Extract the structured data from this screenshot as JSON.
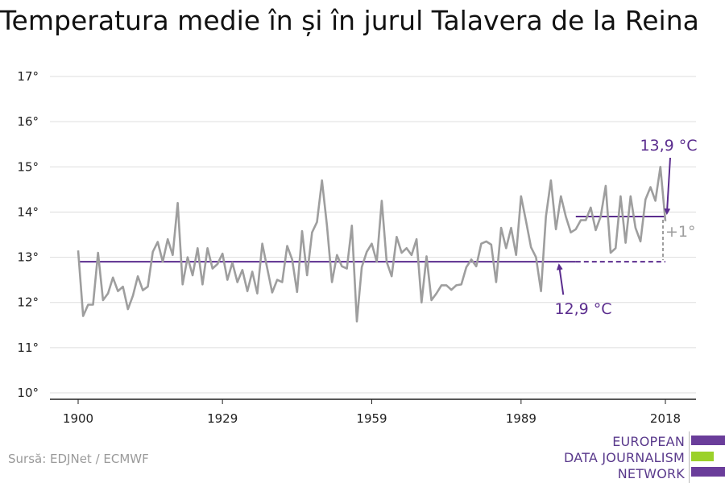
{
  "title": "Temperatura medie în și în jurul Talavera de la Reina",
  "source": "Sursă: EDJNet / ECMWF",
  "logo": {
    "lines": [
      "EUROPEAN",
      "DATA JOURNALISM",
      "NETWORK"
    ],
    "colors": {
      "purple": "#6a3d9a",
      "green": "#9bd12a"
    }
  },
  "colors": {
    "series": "#9e9e9e",
    "average": "#5b2d8e",
    "annotation": "#5b2d8e",
    "diff": "#9e9e9e",
    "grid": "#dddddd"
  },
  "chart_data": {
    "type": "line",
    "title": "Temperatura medie în și în jurul Talavera de la Reina",
    "xlabel": "",
    "ylabel": "",
    "xlim": [
      1900,
      2018
    ],
    "ylim": [
      10,
      17
    ],
    "x_ticks": [
      "1900",
      "1929",
      "1959",
      "1989",
      "2018"
    ],
    "y_ticks": [
      "10°",
      "11°",
      "12°",
      "13°",
      "14°",
      "15°",
      "16°",
      "17°"
    ],
    "grid": true,
    "series": [
      {
        "x": [
          1900,
          1901,
          1902,
          1903,
          1904,
          1905,
          1906,
          1907,
          1908,
          1909,
          1910,
          1911,
          1912,
          1913,
          1914,
          1915,
          1916,
          1917,
          1918,
          1919,
          1920,
          1921,
          1922,
          1923,
          1924,
          1925,
          1926,
          1927,
          1928,
          1929,
          1930,
          1931,
          1932,
          1933,
          1934,
          1935,
          1936,
          1937,
          1938,
          1939,
          1940,
          1941,
          1942,
          1943,
          1944,
          1945,
          1946,
          1947,
          1948,
          1949,
          1950,
          1951,
          1952,
          1953,
          1954,
          1955,
          1956,
          1957,
          1958,
          1959,
          1960,
          1961,
          1962,
          1963,
          1964,
          1965,
          1966,
          1967,
          1968,
          1969,
          1970,
          1971,
          1972,
          1973,
          1974,
          1975,
          1976,
          1977,
          1978,
          1979,
          1980,
          1981,
          1982,
          1983,
          1984,
          1985,
          1986,
          1987,
          1988,
          1989,
          1990,
          1991,
          1992,
          1993,
          1994,
          1995,
          1996,
          1997,
          1998,
          1999,
          2000,
          2001,
          2002,
          2003,
          2004,
          2005,
          2006,
          2007,
          2008,
          2009,
          2010,
          2011,
          2012,
          2013,
          2014,
          2015,
          2016,
          2017,
          2018
        ],
        "values": [
          13.15,
          11.7,
          11.95,
          11.95,
          13.1,
          12.05,
          12.2,
          12.55,
          12.25,
          12.35,
          11.85,
          12.15,
          12.58,
          12.27,
          12.35,
          13.12,
          13.34,
          12.9,
          13.4,
          13.05,
          14.2,
          12.4,
          13.0,
          12.6,
          13.2,
          12.4,
          13.2,
          12.75,
          12.85,
          13.08,
          12.5,
          12.88,
          12.45,
          12.72,
          12.25,
          12.68,
          12.2,
          13.3,
          12.75,
          12.22,
          12.5,
          12.45,
          13.25,
          12.95,
          12.23,
          13.58,
          12.6,
          13.55,
          13.78,
          14.7,
          13.7,
          12.45,
          13.05,
          12.8,
          12.75,
          13.7,
          11.58,
          12.78,
          13.12,
          13.3,
          12.9,
          14.25,
          12.9,
          12.58,
          13.45,
          13.1,
          13.2,
          13.05,
          13.4,
          12.0,
          13.02,
          12.05,
          12.2,
          12.38,
          12.38,
          12.28,
          12.38,
          12.4,
          12.78,
          12.95,
          12.8,
          13.3,
          13.35,
          13.28,
          12.45,
          13.65,
          13.2,
          13.65,
          13.05,
          14.35,
          13.8,
          13.22,
          13.0,
          12.25,
          13.9,
          14.7,
          13.62,
          14.35,
          13.9,
          13.55,
          13.62,
          13.82,
          13.82,
          14.1,
          13.6,
          13.9,
          14.58,
          13.1,
          13.2,
          14.35,
          13.32,
          14.35,
          13.65,
          13.35,
          14.28,
          14.55,
          14.25,
          15.0,
          13.8
        ]
      }
    ],
    "averages": [
      {
        "from": 1900,
        "to": 2000,
        "dashed_to": 2018,
        "value": 12.9,
        "label": "12,9 °C"
      },
      {
        "from": 2000,
        "to": 2018,
        "value": 13.9,
        "label": "13,9 °C"
      }
    ],
    "difference_label": "+1°"
  }
}
